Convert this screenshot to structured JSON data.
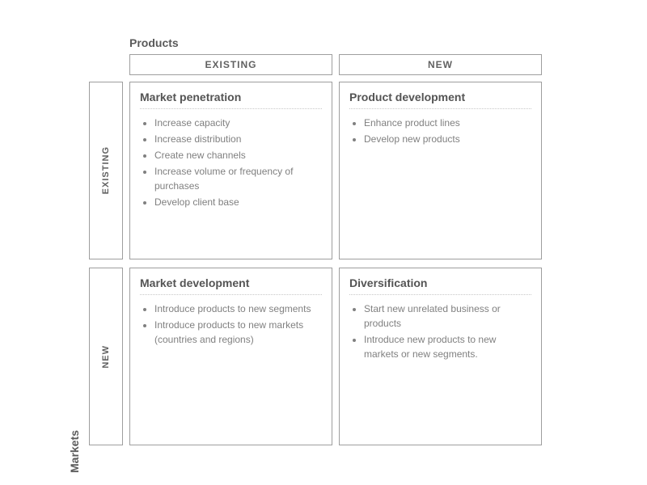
{
  "axis": {
    "top": "Products",
    "left": "Markets"
  },
  "cols": [
    "EXISTING",
    "NEW"
  ],
  "rows": [
    "EXISTING",
    "NEW"
  ],
  "cells": {
    "r0c0": {
      "title": "Market penetration",
      "items": [
        "Increase capacity",
        "Increase distribution",
        "Create new channels",
        "Increase volume or frequency of purchases",
        "Develop client base"
      ]
    },
    "r0c1": {
      "title": "Product development",
      "items": [
        "Enhance product lines",
        "Develop new products"
      ]
    },
    "r1c0": {
      "title": "Market development",
      "items": [
        "Introduce products to new segments",
        "Introduce products to new markets (countries and regions)"
      ]
    },
    "r1c1": {
      "title": "Diversification",
      "items": [
        "Start new unrelated business or products",
        "Introduce new products to new markets or new segments."
      ]
    }
  },
  "style": {
    "border_color": "#9e9e9e",
    "title_color": "#545454",
    "item_color": "#808080",
    "axis_color": "#5a5a5a",
    "dotted_color": "#c8c8c8",
    "background": "#ffffff"
  }
}
